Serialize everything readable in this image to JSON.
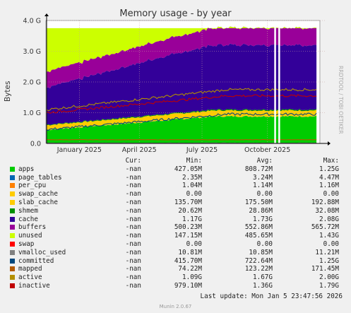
{
  "chart_data": {
    "type": "area",
    "title": "Memory usage - by year",
    "ylabel": "Bytes",
    "vertical_label": "RRDTOOL / TOBI OETIKER",
    "yticks": [
      "0.0",
      "1.0 G",
      "2.0 G",
      "3.0 G",
      "4.0 G"
    ],
    "ylim": [
      0,
      4.0
    ],
    "xticks": [
      "January 2025",
      "April 2025",
      "July 2025",
      "October 2025"
    ],
    "grid": true,
    "stacked_series": [
      {
        "name": "apps",
        "color": "#00cc00",
        "start": 0.44,
        "end": 0.88
      },
      {
        "name": "page_tables",
        "color": "#0066b3",
        "start": 0.003,
        "end": 0.003
      },
      {
        "name": "per_cpu",
        "color": "#ff8000",
        "start": 0.001,
        "end": 0.001
      },
      {
        "name": "swap_cache",
        "color": "#ffcc00",
        "start": 0.0,
        "end": 0.0
      },
      {
        "name": "slab_cache",
        "color": "#ffcc00",
        "start": 0.15,
        "end": 0.19
      },
      {
        "name": "shmem",
        "color": "#008f00",
        "start": 0.02,
        "end": 0.03
      },
      {
        "name": "cache",
        "color": "#330099",
        "start": 1.2,
        "end": 1.9
      },
      {
        "name": "buffers",
        "color": "#990099",
        "start": 0.52,
        "end": 0.56
      },
      {
        "name": "unused",
        "color": "#ccff00",
        "start": 1.4,
        "end": 0.15
      }
    ],
    "line_series": [
      {
        "name": "swap",
        "color": "#ff0000",
        "value": 0.0
      },
      {
        "name": "vmalloc_used",
        "color": "#808080",
        "value": 0.011
      },
      {
        "name": "committed",
        "color": "#00487d",
        "start": 0.45,
        "end": 0.95
      },
      {
        "name": "mapped",
        "color": "#b35a00",
        "value": 0.12
      },
      {
        "name": "active",
        "color": "#b38f00",
        "start": 1.1,
        "end": 1.75
      },
      {
        "name": "inactive",
        "color": "#c00000",
        "start": 1.0,
        "end": 1.55
      }
    ]
  },
  "legend": {
    "headers": {
      "cur": "Cur:",
      "min": "Min:",
      "avg": "Avg:",
      "max": "Max:"
    },
    "rows": [
      {
        "name": "apps",
        "color": "#00cc00",
        "cur": "-nan",
        "min": "427.05M",
        "avg": "808.72M",
        "max": "1.25G"
      },
      {
        "name": "page_tables",
        "color": "#0066b3",
        "cur": "-nan",
        "min": "2.35M",
        "avg": "3.24M",
        "max": "4.47M"
      },
      {
        "name": "per_cpu",
        "color": "#ff8000",
        "cur": "-nan",
        "min": "1.04M",
        "avg": "1.14M",
        "max": "1.16M"
      },
      {
        "name": "swap_cache",
        "color": "#ffcc00",
        "cur": "-nan",
        "min": "0.00",
        "avg": "0.00",
        "max": "0.00"
      },
      {
        "name": "slab_cache",
        "color": "#ffcc00",
        "cur": "-nan",
        "min": "135.70M",
        "avg": "175.50M",
        "max": "192.88M"
      },
      {
        "name": "shmem",
        "color": "#008f00",
        "cur": "-nan",
        "min": "20.62M",
        "avg": "28.86M",
        "max": "32.08M"
      },
      {
        "name": "cache",
        "color": "#330099",
        "cur": "-nan",
        "min": "1.17G",
        "avg": "1.73G",
        "max": "2.08G"
      },
      {
        "name": "buffers",
        "color": "#990099",
        "cur": "-nan",
        "min": "500.23M",
        "avg": "552.86M",
        "max": "565.72M"
      },
      {
        "name": "unused",
        "color": "#ccff00",
        "cur": "-nan",
        "min": "147.15M",
        "avg": "485.65M",
        "max": "1.43G"
      },
      {
        "name": "swap",
        "color": "#ff0000",
        "cur": "-nan",
        "min": "0.00",
        "avg": "0.00",
        "max": "0.00"
      },
      {
        "name": "vmalloc_used",
        "color": "#808080",
        "cur": "-nan",
        "min": "10.81M",
        "avg": "10.85M",
        "max": "11.21M"
      },
      {
        "name": "committed",
        "color": "#00487d",
        "cur": "-nan",
        "min": "415.70M",
        "avg": "722.64M",
        "max": "1.25G"
      },
      {
        "name": "mapped",
        "color": "#b35a00",
        "cur": "-nan",
        "min": "74.22M",
        "avg": "123.22M",
        "max": "171.45M"
      },
      {
        "name": "active",
        "color": "#b38f00",
        "cur": "-nan",
        "min": "1.09G",
        "avg": "1.67G",
        "max": "2.00G"
      },
      {
        "name": "inactive",
        "color": "#c00000",
        "cur": "-nan",
        "min": "979.10M",
        "avg": "1.36G",
        "max": "1.79G"
      }
    ]
  },
  "footer": {
    "last_update": "Last update: Mon Jan  5 23:47:56 2026",
    "generator": "Munin 2.0.67"
  }
}
